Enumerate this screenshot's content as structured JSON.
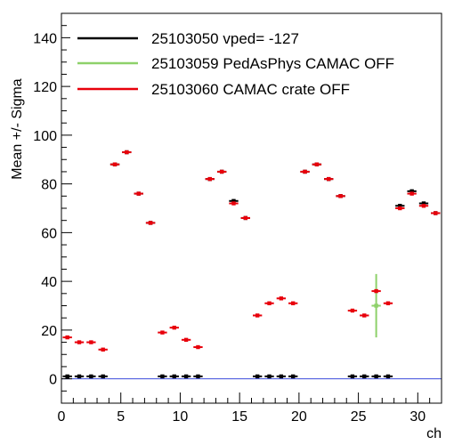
{
  "chart_data": {
    "type": "scatter",
    "title": "",
    "xlabel": "ch",
    "ylabel": "Mean +/- Sigma",
    "xlim": [
      0,
      32
    ],
    "ylim": [
      -10,
      150
    ],
    "x_ticks_major": [
      0,
      5,
      10,
      15,
      20,
      25,
      30
    ],
    "y_ticks_major": [
      0,
      20,
      40,
      60,
      80,
      100,
      120,
      140
    ],
    "x_minor_step": 1,
    "y_minor_step": 5,
    "grid": false,
    "legend_position": "top-left",
    "reference_line": {
      "y": 0,
      "color": "#3b4bdb"
    },
    "series": [
      {
        "name": "25103050 vped= -127",
        "color": "#000000",
        "x": [
          0.5,
          1.5,
          2.5,
          3.5,
          4.5,
          5.5,
          6.5,
          7.5,
          8.5,
          9.5,
          10.5,
          11.5,
          12.5,
          13.5,
          14.5,
          15.5,
          16.5,
          17.5,
          18.5,
          19.5,
          20.5,
          21.5,
          22.5,
          23.5,
          24.5,
          25.5,
          26.5,
          27.5,
          28.5,
          29.5,
          30.5,
          31.5
        ],
        "y": [
          1,
          1,
          1,
          1,
          88,
          93,
          76,
          64,
          1,
          1,
          1,
          1,
          82,
          85,
          73,
          66,
          1,
          1,
          1,
          1,
          85,
          88,
          82,
          75,
          1,
          1,
          1,
          1,
          71,
          77,
          72,
          68
        ],
        "err": [
          0,
          0,
          0,
          0,
          0,
          0,
          0,
          0,
          0,
          0,
          0,
          0,
          0,
          0,
          0,
          0,
          0,
          0,
          0,
          0,
          0,
          0,
          0,
          0,
          0,
          0,
          0,
          0,
          0,
          0,
          0,
          0
        ]
      },
      {
        "name": "25103059 PedAsPhys CAMAC OFF",
        "color": "#8ed16a",
        "x": [
          26.5
        ],
        "y": [
          30
        ],
        "err": [
          13
        ]
      },
      {
        "name": "25103060 CAMAC crate OFF",
        "color": "#e8000b",
        "x": [
          0.5,
          1.5,
          2.5,
          3.5,
          4.5,
          5.5,
          6.5,
          7.5,
          8.5,
          9.5,
          10.5,
          11.5,
          12.5,
          13.5,
          14.5,
          15.5,
          16.5,
          17.5,
          18.5,
          19.5,
          20.5,
          21.5,
          22.5,
          23.5,
          24.5,
          25.5,
          26.5,
          27.5,
          28.5,
          29.5,
          30.5,
          31.5
        ],
        "y": [
          17,
          15,
          15,
          12,
          88,
          93,
          76,
          64,
          19,
          21,
          16,
          13,
          82,
          85,
          72,
          66,
          26,
          31,
          33,
          31,
          85,
          88,
          82,
          75,
          28,
          26,
          36,
          31,
          70,
          76,
          71,
          68
        ],
        "err": [
          0,
          0,
          0,
          0,
          0,
          0,
          0,
          0,
          0,
          0,
          0,
          0,
          0,
          0,
          0,
          0,
          0,
          0,
          0,
          0,
          0,
          0,
          0,
          0,
          0,
          0,
          0,
          0,
          0,
          0,
          0,
          0
        ]
      }
    ]
  }
}
